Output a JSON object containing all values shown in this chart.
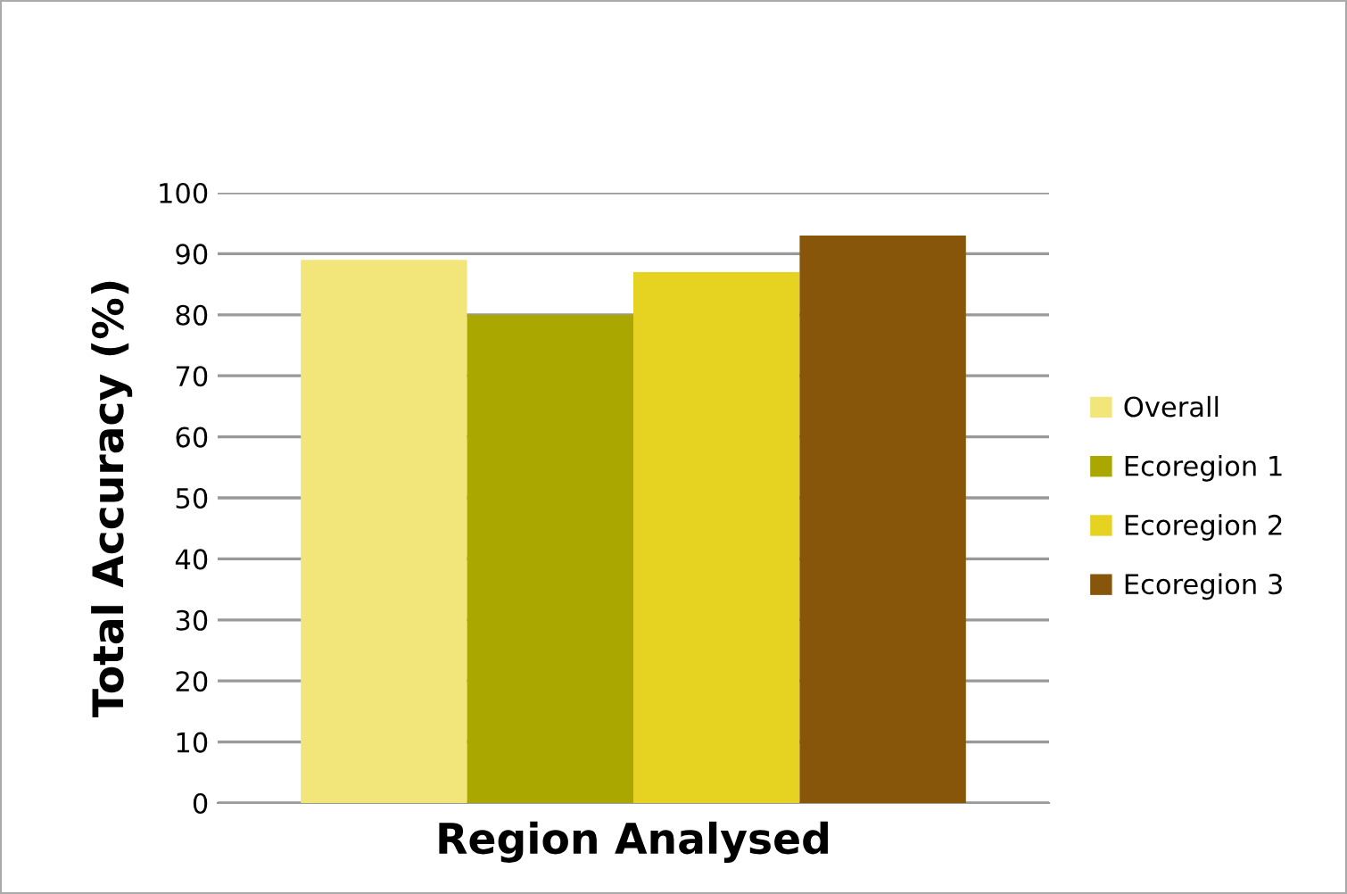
{
  "chart_data": {
    "type": "bar",
    "xlabel": "Region Analysed",
    "ylabel": "Total Accuracy (%)",
    "categories": [
      null
    ],
    "series": [
      {
        "name": "Overall",
        "color": "#f2e67a",
        "values": [
          89
        ]
      },
      {
        "name": "Ecoregion 1",
        "color": "#aaa800",
        "values": [
          80
        ]
      },
      {
        "name": "Ecoregion 2",
        "color": "#e6d220",
        "values": [
          87
        ]
      },
      {
        "name": "Ecoregion 3",
        "color": "#87560a",
        "values": [
          93
        ]
      }
    ],
    "ylim": [
      0,
      100
    ],
    "yticks": [
      0,
      10,
      20,
      30,
      40,
      50,
      60,
      70,
      80,
      90,
      100
    ],
    "grid": "y",
    "legend": "right"
  }
}
